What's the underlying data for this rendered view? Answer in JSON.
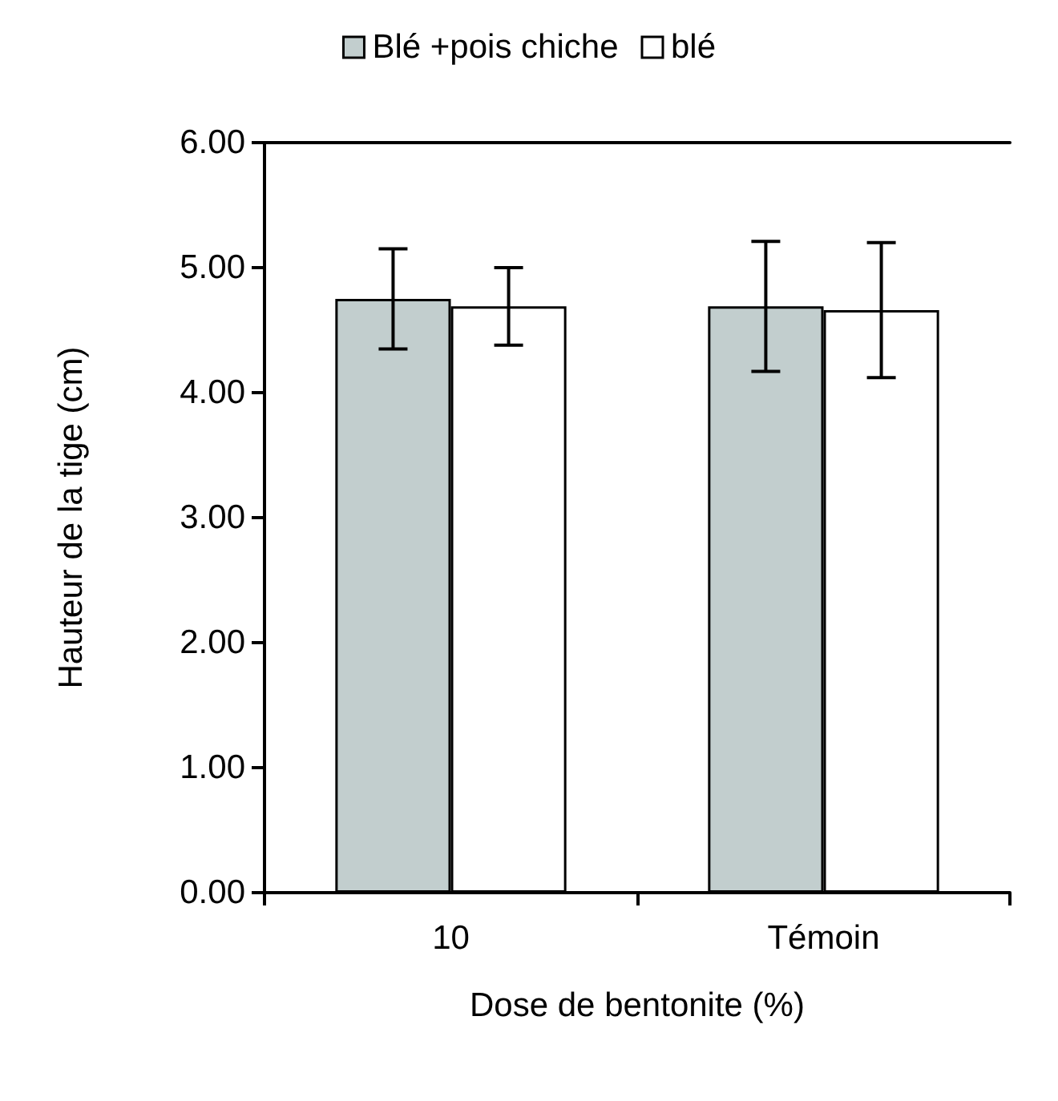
{
  "chart_data": {
    "type": "bar",
    "xlabel": "Dose de bentonite (%)",
    "ylabel": "Hauteur de la tige (cm)",
    "categories": [
      "10",
      "Témoin"
    ],
    "series": [
      {
        "name": "Blé +pois chiche",
        "color": "#c2cece",
        "values": [
          4.75,
          4.69
        ],
        "errors": [
          0.4,
          0.52
        ]
      },
      {
        "name": "blé",
        "color": "#ffffff",
        "values": [
          4.69,
          4.66
        ],
        "errors": [
          0.31,
          0.54
        ]
      }
    ],
    "ylim": [
      0,
      6
    ],
    "yticks": [
      {
        "value": 0,
        "label": "0.00"
      },
      {
        "value": 1,
        "label": "1.00"
      },
      {
        "value": 2,
        "label": "2.00"
      },
      {
        "value": 3,
        "label": "3.00"
      },
      {
        "value": 4,
        "label": "4.00"
      },
      {
        "value": 5,
        "label": "5.00"
      },
      {
        "value": 6,
        "label": "6.00"
      }
    ],
    "grid": false,
    "legend": "top"
  }
}
